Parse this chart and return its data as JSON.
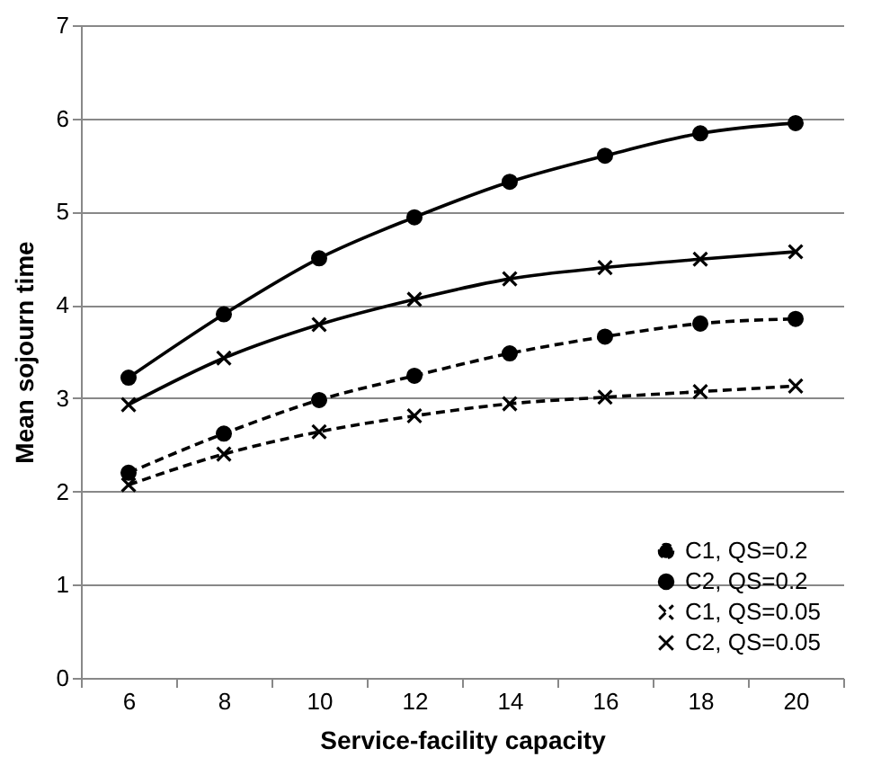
{
  "chart_data": {
    "type": "line",
    "xlabel": "Service-facility capacity",
    "ylabel": "Mean sojourn time",
    "categories": [
      "6",
      "8",
      "10",
      "12",
      "14",
      "16",
      "18",
      "20"
    ],
    "series": [
      {
        "name": "C1, QS=0.2",
        "color": "#000000",
        "marker": "circle",
        "line_style": "dashed",
        "values": [
          2.2,
          2.62,
          2.98,
          3.24,
          3.48,
          3.66,
          3.8,
          3.85
        ]
      },
      {
        "name": "C2, QS=0.2",
        "color": "#000000",
        "marker": "circle",
        "line_style": "solid",
        "values": [
          3.22,
          3.9,
          4.5,
          4.94,
          5.32,
          5.6,
          5.84,
          5.95
        ]
      },
      {
        "name": "C1, QS=0.05",
        "color": "#000000",
        "marker": "cross",
        "line_style": "dashed",
        "values": [
          2.07,
          2.4,
          2.64,
          2.81,
          2.94,
          3.01,
          3.07,
          3.13
        ]
      },
      {
        "name": "C2, QS=0.05",
        "color": "#000000",
        "marker": "cross",
        "line_style": "solid",
        "values": [
          2.93,
          3.43,
          3.79,
          4.06,
          4.28,
          4.4,
          4.49,
          4.57
        ]
      }
    ],
    "ylim": [
      0,
      7
    ],
    "yticks": [
      0,
      1,
      2,
      3,
      4,
      5,
      6,
      7
    ],
    "grid": "y",
    "legend": "bottom right"
  }
}
